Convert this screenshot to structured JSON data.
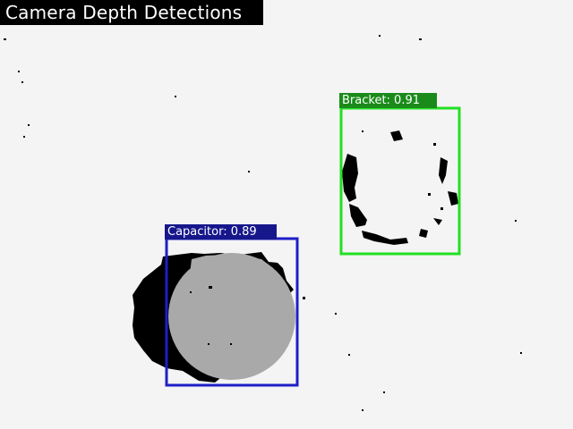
{
  "window": {
    "title": "Camera Depth Detections"
  },
  "detections": [
    {
      "label": "Bracket: 0.91",
      "class": "Bracket",
      "confidence": 0.91,
      "color": "#22e022"
    },
    {
      "label": "Capacitor: 0.89",
      "class": "Capacitor",
      "confidence": 0.89,
      "color": "#1e1ec8"
    }
  ],
  "colors": {
    "background": "#f4f4f4",
    "capacitor_body": "#a9a9a9",
    "shadow": "#000000",
    "bracket_fill": "#f0f0f0"
  }
}
